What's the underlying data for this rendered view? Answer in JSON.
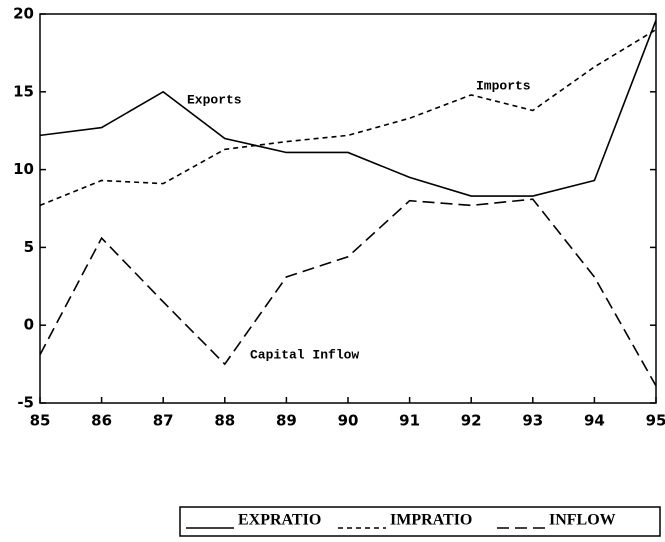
{
  "chart_data": {
    "type": "line",
    "x": [
      85,
      86,
      87,
      88,
      89,
      90,
      91,
      92,
      93,
      94,
      95
    ],
    "xlim": [
      85,
      95
    ],
    "xticks": [
      85,
      86,
      87,
      88,
      89,
      90,
      91,
      92,
      93,
      94,
      95
    ],
    "ylim": [
      -5,
      20
    ],
    "yticks": [
      -5,
      0,
      5,
      10,
      15,
      20
    ],
    "series": [
      {
        "name": "EXPRATIO",
        "color": "#000000",
        "dash": "solid",
        "values": [
          12.2,
          12.7,
          15.0,
          12.0,
          11.1,
          11.1,
          9.5,
          8.3,
          8.3,
          9.3,
          19.6
        ]
      },
      {
        "name": "IMPRATIO",
        "color": "#000000",
        "dash": "short",
        "values": [
          7.7,
          9.3,
          9.1,
          11.3,
          11.8,
          12.2,
          13.3,
          14.8,
          13.8,
          16.6,
          19.0
        ]
      },
      {
        "name": "INFLOW",
        "color": "#000000",
        "dash": "long",
        "values": [
          -1.9,
          5.6,
          1.5,
          -2.5,
          3.1,
          4.4,
          8.0,
          7.7,
          8.1,
          3.1,
          -3.9
        ]
      }
    ],
    "annotations": [
      "Exports",
      "Imports",
      "Capital Inflow"
    ]
  }
}
